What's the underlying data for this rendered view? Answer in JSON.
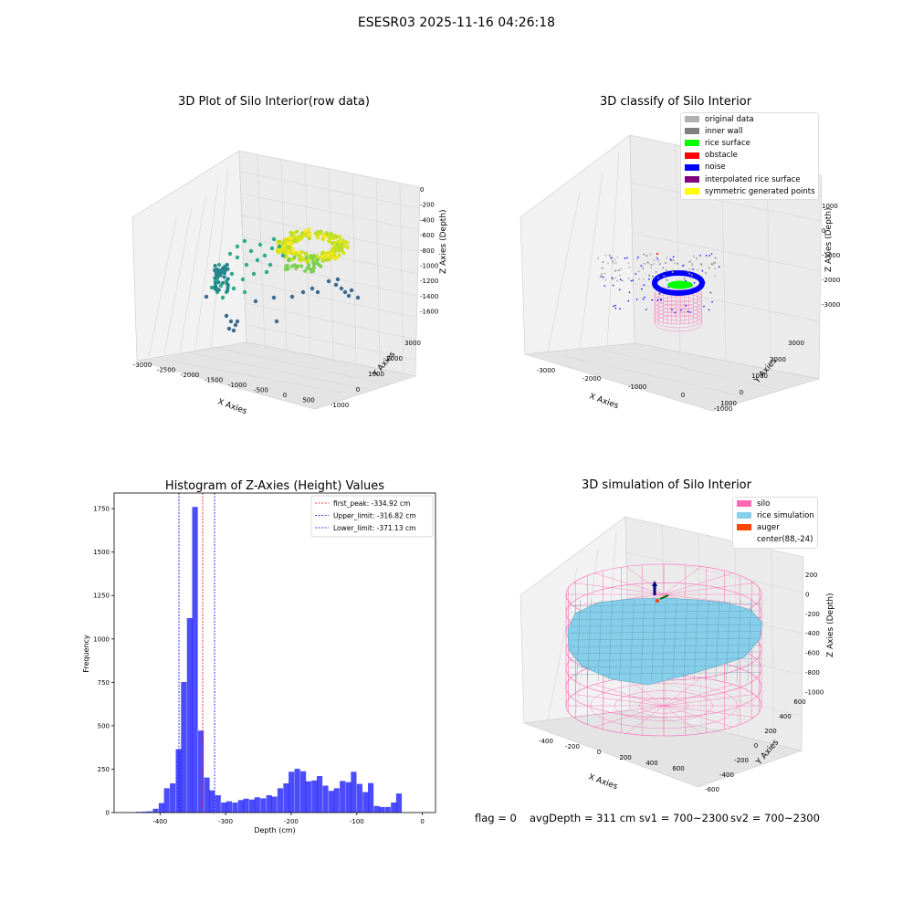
{
  "suptitle": "ESESR03 2025-11-16 04:26:18",
  "panels": {
    "raw": {
      "title": "3D Plot of Silo Interior(row data)",
      "xlabel": "X Axies",
      "ylabel": "Y Axies",
      "zlabel": "Z Axies (Depth)",
      "x_ticks": [
        "-3000",
        "-2500",
        "-2000",
        "-1500",
        "-1000",
        "-500",
        "0",
        "500"
      ],
      "y_ticks": [
        "-1000",
        "0",
        "1000",
        "2000",
        "3000"
      ],
      "z_ticks": [
        "0",
        "-200",
        "-400",
        "-600",
        "-800",
        "-1000",
        "-1200",
        "-1400",
        "-1600"
      ]
    },
    "classify": {
      "title": "3D classify of Silo Interior",
      "xlabel": "X Axies",
      "ylabel": "Y Axies",
      "zlabel": "Z Axies (Depth)",
      "x_ticks": [
        "-3000",
        "-2000",
        "-1000",
        "0",
        "1000"
      ],
      "y_ticks": [
        "-1000",
        "0",
        "1000",
        "2000",
        "3000"
      ],
      "z_ticks": [
        "1000",
        "0",
        "-1000",
        "-2000",
        "-3000"
      ],
      "legend": [
        {
          "label": "original data",
          "color": "#b0b0b0"
        },
        {
          "label": "inner wall",
          "color": "#808080"
        },
        {
          "label": "rice surface",
          "color": "#00ff00"
        },
        {
          "label": "obstacle",
          "color": "#ff0000"
        },
        {
          "label": "noise",
          "color": "#0000ff"
        },
        {
          "label": "interpolated rice surface",
          "color": "#800080"
        },
        {
          "label": "symmetric generated points",
          "color": "#ffff00"
        }
      ]
    },
    "simulation": {
      "title": "3D simulation of Silo Interior",
      "xlabel": "X Axies",
      "ylabel": "Y Axies",
      "zlabel": "Z Axies (Depth)",
      "x_ticks": [
        "-400",
        "-200",
        "0",
        "200",
        "400",
        "600"
      ],
      "y_ticks": [
        "-600",
        "-400",
        "-200",
        "0",
        "200",
        "400",
        "600"
      ],
      "z_ticks": [
        "200",
        "0",
        "-200",
        "-400",
        "-600",
        "-800",
        "-1000"
      ],
      "legend": [
        {
          "label": "silo",
          "color": "#ff69b4"
        },
        {
          "label": "rice simulation",
          "color": "#87ceeb"
        },
        {
          "label": "auger",
          "color": "#ff4500"
        },
        {
          "label": "center(88,-24)",
          "color": "#ffffff"
        }
      ]
    }
  },
  "footer": {
    "flag": "flag = 0",
    "avg": "avgDepth = 311 cm",
    "sv1": "sv1 = 700~2300",
    "sv2": "sv2 = 700~2300"
  },
  "colors": {
    "histogram": "#0000ff",
    "peak_line": "#ff0000",
    "limit_line": "#0000ff",
    "silo": "#ff69b4",
    "rice": "#87ceeb"
  },
  "chart_data": [
    {
      "type": "histogram",
      "title": "Histogram of Z-Axies (Height) Values",
      "xlabel": "Depth (cm)",
      "ylabel": "Frequency",
      "xlim": [
        -470,
        20
      ],
      "ylim": [
        0,
        1840
      ],
      "x_ticks": [
        -400,
        -300,
        -200,
        -100,
        0
      ],
      "y_ticks": [
        0,
        250,
        500,
        750,
        1000,
        1250,
        1500,
        1750
      ],
      "bin_width": 8.6,
      "bins": [
        {
          "x": -437,
          "v": 4
        },
        {
          "x": -428,
          "v": 5
        },
        {
          "x": -420,
          "v": 7
        },
        {
          "x": -411,
          "v": 22
        },
        {
          "x": -402,
          "v": 55
        },
        {
          "x": -394,
          "v": 140
        },
        {
          "x": -385,
          "v": 168
        },
        {
          "x": -376,
          "v": 365
        },
        {
          "x": -368,
          "v": 752
        },
        {
          "x": -359,
          "v": 1120
        },
        {
          "x": -351,
          "v": 1760
        },
        {
          "x": -342,
          "v": 472
        },
        {
          "x": -333,
          "v": 202
        },
        {
          "x": -325,
          "v": 128
        },
        {
          "x": -316,
          "v": 100
        },
        {
          "x": -307,
          "v": 58
        },
        {
          "x": -299,
          "v": 65
        },
        {
          "x": -290,
          "v": 58
        },
        {
          "x": -281,
          "v": 72
        },
        {
          "x": -273,
          "v": 80
        },
        {
          "x": -264,
          "v": 75
        },
        {
          "x": -256,
          "v": 88
        },
        {
          "x": -247,
          "v": 82
        },
        {
          "x": -238,
          "v": 100
        },
        {
          "x": -230,
          "v": 92
        },
        {
          "x": -221,
          "v": 140
        },
        {
          "x": -212,
          "v": 168
        },
        {
          "x": -204,
          "v": 235
        },
        {
          "x": -195,
          "v": 252
        },
        {
          "x": -186,
          "v": 238
        },
        {
          "x": -178,
          "v": 180
        },
        {
          "x": -169,
          "v": 185
        },
        {
          "x": -161,
          "v": 210
        },
        {
          "x": -152,
          "v": 155
        },
        {
          "x": -143,
          "v": 125
        },
        {
          "x": -135,
          "v": 140
        },
        {
          "x": -126,
          "v": 182
        },
        {
          "x": -117,
          "v": 175
        },
        {
          "x": -109,
          "v": 235
        },
        {
          "x": -100,
          "v": 165
        },
        {
          "x": -91,
          "v": 118
        },
        {
          "x": -83,
          "v": 170
        },
        {
          "x": -74,
          "v": 38
        },
        {
          "x": -66,
          "v": 32
        },
        {
          "x": -57,
          "v": 32
        },
        {
          "x": -48,
          "v": 58
        },
        {
          "x": -40,
          "v": 110
        }
      ],
      "lines": [
        {
          "label": "first_peak: -334.92 cm",
          "x": -334.92,
          "color": "#ff0000"
        },
        {
          "label": "Upper_limit: -316.82 cm",
          "x": -316.82,
          "color": "#0000ff"
        },
        {
          "label": "Lower_limit: -371.13 cm",
          "x": -371.13,
          "color": "#0000ff"
        }
      ]
    }
  ]
}
